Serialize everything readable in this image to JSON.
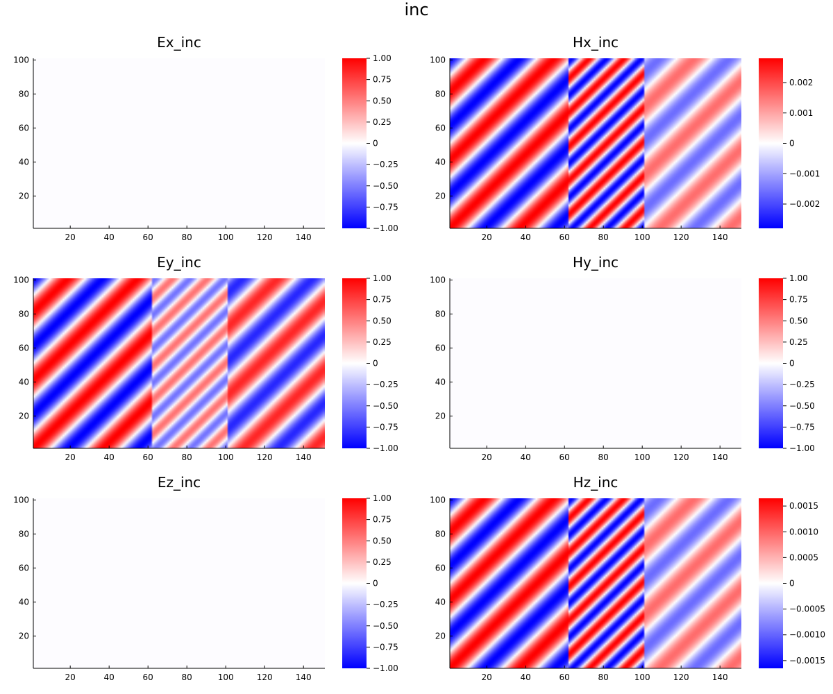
{
  "figure_title": "inc",
  "chart_data": [
    {
      "type": "heatmap",
      "title": "Ex_inc",
      "x": {
        "range": [
          1,
          151
        ],
        "ticks": [
          "20",
          "40",
          "60",
          "80",
          "100",
          "120",
          "140"
        ]
      },
      "y": {
        "range": [
          1,
          101
        ],
        "ticks": [
          "20",
          "40",
          "60",
          "80",
          "100"
        ]
      },
      "colorbar": {
        "range": [
          -1.0,
          1.0
        ],
        "ticks": [
          -1,
          -0.75,
          -0.5,
          -0.25,
          0,
          0.25,
          0.5,
          0.75,
          1
        ],
        "labels": [
          "−1.00",
          "−0.75",
          "−0.50",
          "−0.25",
          "0",
          "0.25",
          "0.50",
          "0.75",
          "1.00"
        ]
      },
      "field": {
        "kind": "uniform",
        "value": 0
      },
      "colormap": [
        "#0000ff",
        "#ffffff",
        "#ff0000"
      ],
      "grid": false
    },
    {
      "type": "heatmap",
      "title": "Hx_inc",
      "x": {
        "range": [
          1,
          151
        ],
        "ticks": [
          "20",
          "40",
          "60",
          "80",
          "100",
          "120",
          "140"
        ]
      },
      "y": {
        "range": [
          1,
          101
        ],
        "ticks": [
          "20",
          "40",
          "60",
          "80",
          "100"
        ]
      },
      "colorbar": {
        "range": [
          -0.0028,
          0.0028
        ],
        "ticks": [
          -0.002,
          -0.001,
          0,
          0.001,
          0.002
        ],
        "labels": [
          "−0.002",
          "−0.001",
          "0",
          "0.001",
          "0.002"
        ]
      },
      "field": {
        "kind": "oblique-wave",
        "regions": [
          {
            "x": [
              1,
              62
            ],
            "period_x": 36,
            "period_y": 40,
            "amplitude": 0.0028
          },
          {
            "x": [
              62,
              101
            ],
            "period_x": 18,
            "period_y": 20,
            "amplitude": 0.0028
          },
          {
            "x": [
              101,
              151
            ],
            "period_x": 36,
            "period_y": 40,
            "amplitude": 0.0016
          }
        ]
      },
      "colormap": [
        "#0000ff",
        "#ffffff",
        "#ff0000"
      ],
      "grid": false
    },
    {
      "type": "heatmap",
      "title": "Ey_inc",
      "x": {
        "range": [
          1,
          151
        ],
        "ticks": [
          "20",
          "40",
          "60",
          "80",
          "100",
          "120",
          "140"
        ]
      },
      "y": {
        "range": [
          1,
          101
        ],
        "ticks": [
          "20",
          "40",
          "60",
          "80",
          "100"
        ]
      },
      "colorbar": {
        "range": [
          -1.0,
          1.0
        ],
        "ticks": [
          -1,
          -0.75,
          -0.5,
          -0.25,
          0,
          0.25,
          0.5,
          0.75,
          1
        ],
        "labels": [
          "−1.00",
          "−0.75",
          "−0.50",
          "−0.25",
          "0",
          "0.25",
          "0.50",
          "0.75",
          "1.00"
        ]
      },
      "field": {
        "kind": "oblique-wave",
        "regions": [
          {
            "x": [
              1,
              62
            ],
            "period_x": 36,
            "period_y": 40,
            "amplitude": 1.0
          },
          {
            "x": [
              62,
              101
            ],
            "period_x": 18,
            "period_y": 20,
            "amplitude": 0.55
          },
          {
            "x": [
              101,
              151
            ],
            "period_x": 36,
            "period_y": 40,
            "amplitude": 0.85
          }
        ]
      },
      "colormap": [
        "#0000ff",
        "#ffffff",
        "#ff0000"
      ],
      "grid": false
    },
    {
      "type": "heatmap",
      "title": "Hy_inc",
      "x": {
        "range": [
          1,
          151
        ],
        "ticks": [
          "20",
          "40",
          "60",
          "80",
          "100",
          "120",
          "140"
        ]
      },
      "y": {
        "range": [
          1,
          101
        ],
        "ticks": [
          "20",
          "40",
          "60",
          "80",
          "100"
        ]
      },
      "colorbar": {
        "range": [
          -1.0,
          1.0
        ],
        "ticks": [
          -1,
          -0.75,
          -0.5,
          -0.25,
          0,
          0.25,
          0.5,
          0.75,
          1
        ],
        "labels": [
          "−1.00",
          "−0.75",
          "−0.50",
          "−0.25",
          "0",
          "0.25",
          "0.50",
          "0.75",
          "1.00"
        ]
      },
      "field": {
        "kind": "uniform",
        "value": 0
      },
      "colormap": [
        "#0000ff",
        "#ffffff",
        "#ff0000"
      ],
      "grid": false
    },
    {
      "type": "heatmap",
      "title": "Ez_inc",
      "x": {
        "range": [
          1,
          151
        ],
        "ticks": [
          "20",
          "40",
          "60",
          "80",
          "100",
          "120",
          "140"
        ]
      },
      "y": {
        "range": [
          1,
          101
        ],
        "ticks": [
          "20",
          "40",
          "60",
          "80",
          "100"
        ]
      },
      "colorbar": {
        "range": [
          -1.0,
          1.0
        ],
        "ticks": [
          -1,
          -0.75,
          -0.5,
          -0.25,
          0,
          0.25,
          0.5,
          0.75,
          1
        ],
        "labels": [
          "−1.00",
          "−0.75",
          "−0.50",
          "−0.25",
          "0",
          "0.25",
          "0.50",
          "0.75",
          "1.00"
        ]
      },
      "field": {
        "kind": "uniform",
        "value": 0
      },
      "colormap": [
        "#0000ff",
        "#ffffff",
        "#ff0000"
      ],
      "grid": false
    },
    {
      "type": "heatmap",
      "title": "Hz_inc",
      "x": {
        "range": [
          1,
          151
        ],
        "ticks": [
          "20",
          "40",
          "60",
          "80",
          "100",
          "120",
          "140"
        ]
      },
      "y": {
        "range": [
          1,
          101
        ],
        "ticks": [
          "20",
          "40",
          "60",
          "80",
          "100"
        ]
      },
      "colorbar": {
        "range": [
          -0.00165,
          0.00165
        ],
        "ticks": [
          -0.0015,
          -0.001,
          -0.0005,
          0,
          0.0005,
          0.001,
          0.0015
        ],
        "labels": [
          "−0.0015",
          "−0.0010",
          "−0.0005",
          "0",
          "0.0005",
          "0.0010",
          "0.0015"
        ]
      },
      "field": {
        "kind": "oblique-wave",
        "regions": [
          {
            "x": [
              1,
              62
            ],
            "period_x": 36,
            "period_y": 40,
            "amplitude": 0.00165
          },
          {
            "x": [
              62,
              101
            ],
            "period_x": 18,
            "period_y": 20,
            "amplitude": 0.00165
          },
          {
            "x": [
              101,
              151
            ],
            "period_x": 36,
            "period_y": 40,
            "amplitude": 0.00095
          }
        ]
      },
      "colormap": [
        "#0000ff",
        "#ffffff",
        "#ff0000"
      ],
      "grid": false
    }
  ]
}
